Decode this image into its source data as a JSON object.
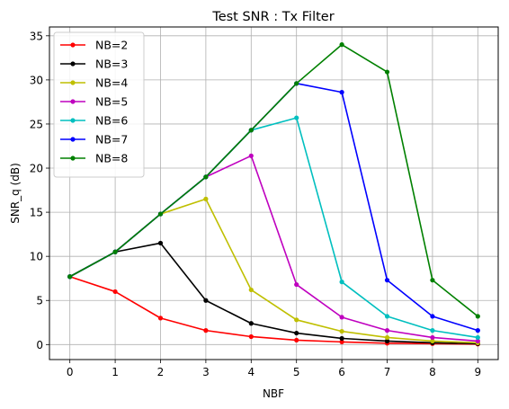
{
  "chart_data": {
    "type": "line",
    "title": "Test SNR : Tx Filter",
    "xlabel": "NBF",
    "ylabel": "SNR_q (dB)",
    "x": [
      0,
      1,
      2,
      3,
      4,
      5,
      6,
      7,
      8,
      9
    ],
    "xlim": [
      -0.45,
      9.45
    ],
    "ylim": [
      -1.7,
      36.0
    ],
    "xticks": [
      0,
      1,
      2,
      3,
      4,
      5,
      6,
      7,
      8,
      9
    ],
    "yticks": [
      0,
      5,
      10,
      15,
      20,
      25,
      30,
      35
    ],
    "grid": true,
    "legend_position": "upper-left",
    "series": [
      {
        "name": "NB=2",
        "color": "#ff0000",
        "values": [
          7.7,
          6.0,
          3.0,
          1.6,
          0.9,
          0.5,
          0.3,
          0.15,
          0.1,
          0.05
        ]
      },
      {
        "name": "NB=3",
        "color": "#000000",
        "values": [
          7.7,
          10.5,
          11.5,
          5.0,
          2.4,
          1.3,
          0.7,
          0.4,
          0.2,
          0.1
        ]
      },
      {
        "name": "NB=4",
        "color": "#bfbf00",
        "values": [
          7.7,
          10.5,
          14.8,
          16.5,
          6.2,
          2.8,
          1.5,
          0.8,
          0.4,
          0.2
        ]
      },
      {
        "name": "NB=5",
        "color": "#bf00bf",
        "values": [
          7.7,
          10.5,
          14.8,
          19.0,
          21.4,
          6.8,
          3.1,
          1.6,
          0.8,
          0.4
        ]
      },
      {
        "name": "NB=6",
        "color": "#00bfbf",
        "values": [
          7.7,
          10.5,
          14.8,
          19.0,
          24.3,
          25.7,
          7.1,
          3.2,
          1.6,
          0.8
        ]
      },
      {
        "name": "NB=7",
        "color": "#0000ff",
        "values": [
          7.7,
          10.5,
          14.8,
          19.0,
          24.3,
          29.6,
          28.6,
          7.3,
          3.2,
          1.6
        ]
      },
      {
        "name": "NB=8",
        "color": "#008000",
        "values": [
          7.7,
          10.5,
          14.8,
          19.0,
          24.3,
          29.6,
          34.0,
          30.9,
          7.3,
          3.2
        ]
      }
    ]
  }
}
